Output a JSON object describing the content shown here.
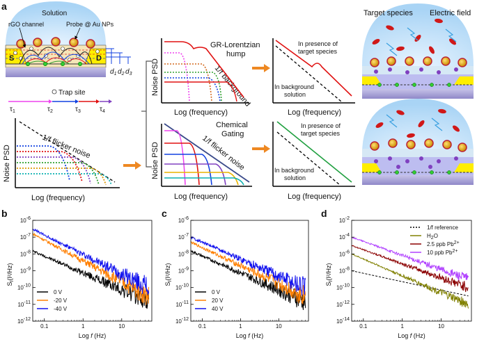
{
  "panel_labels": {
    "a": "a",
    "b": "b",
    "c": "c",
    "d": "d"
  },
  "schematic": {
    "solution": "Solution",
    "rgo_channel": "rGO channel",
    "probe": "Probe @ Au NPs",
    "source": "S",
    "drain": "D",
    "d1": "d",
    "d1_sub": "1",
    "d2": "d",
    "d2_sub": "2",
    "d3": "d",
    "d3_sub": "3",
    "trap_site": "Trap site",
    "tau1": "τ",
    "tau1_sub": "1",
    "tau2": "τ",
    "tau2_sub": "2",
    "tau3": "τ",
    "tau3_sub": "3",
    "tau4": "τ",
    "tau4_sub": "4"
  },
  "flicker_plot": {
    "ylabel": "Noise PSD",
    "xlabel": "Log (frequency)",
    "annotation": "1/f flicker noise"
  },
  "gr_plot": {
    "title1": "GR-Lorentzian",
    "title2": "hump",
    "ylabel": "Noise PSD",
    "xlabel": "Log (frequency)",
    "background": "1/f background"
  },
  "gating_plot": {
    "title1": "Chemical",
    "title2": "Gating",
    "ylabel": "Noise PSD",
    "xlabel": "Log (frequency)",
    "annotation": "1/f flicker noise"
  },
  "gr_result": {
    "presence1": "In presence of",
    "presence2": "target species",
    "background1": "In background",
    "background2": "solution",
    "xlabel": "Log (frequency)"
  },
  "gating_result": {
    "presence1": "In presence of",
    "presence2": "target species",
    "background1": "In background",
    "background2": "solution",
    "xlabel": "Log (frequency)"
  },
  "device_right": {
    "target_species": "Target species",
    "electric_field": "Electric field"
  },
  "chart_data": [
    {
      "type": "line",
      "panel": "b",
      "ylabel": "S_I (I²/Hz)",
      "ylabel_main": "S",
      "ylabel_sub": "I",
      "ylabel_unit": "(I²/Hz)",
      "xlabel": "Log f (Hz)",
      "xlabel_pre": "Log ",
      "xlabel_f": "f",
      "xlabel_post": " (Hz)",
      "xscale": "log",
      "yscale": "log",
      "xlim": [
        0.05,
        60
      ],
      "ylim": [
        1e-12,
        1e-06
      ],
      "xticks": [
        "0.1",
        "1",
        "10"
      ],
      "yticks": [
        "10-12",
        "10-11",
        "10-10",
        "10-9",
        "10-8",
        "10-7",
        "10-6"
      ],
      "ytick_exp": [
        "-12",
        "-11",
        "-10",
        "-9",
        "-8",
        "-7",
        "-6"
      ],
      "legend_position": "bottom-left",
      "series": [
        {
          "name": "0 V",
          "color": "#000000",
          "x": [
            0.05,
            50
          ],
          "y": [
            1.5e-08,
            1.5e-11
          ]
        },
        {
          "name": "-20 V",
          "color": "#ff7f00",
          "x": [
            0.05,
            50
          ],
          "y": [
            1.6e-07,
            3e-11
          ]
        },
        {
          "name": "-40 V",
          "color": "#1010ee",
          "x": [
            0.05,
            50
          ],
          "y": [
            3e-07,
            1e-10
          ]
        }
      ]
    },
    {
      "type": "line",
      "panel": "c",
      "ylabel": "S_I (I²/Hz)",
      "ylabel_main": "S",
      "ylabel_sub": "I",
      "ylabel_unit": "(I²/Hz)",
      "xlabel": "Log f (Hz)",
      "xlabel_pre": "Log ",
      "xlabel_f": "f",
      "xlabel_post": " (Hz)",
      "xscale": "log",
      "yscale": "log",
      "xlim": [
        0.05,
        60
      ],
      "ylim": [
        1e-12,
        1e-06
      ],
      "xticks": [
        "0.1",
        "1",
        "10"
      ],
      "yticks": [
        "10-12",
        "10-11",
        "10-10",
        "10-9",
        "10-8",
        "10-7",
        "10-6"
      ],
      "ytick_exp": [
        "-12",
        "-11",
        "-10",
        "-9",
        "-8",
        "-7",
        "-6"
      ],
      "legend_position": "bottom-left",
      "series": [
        {
          "name": "0 V",
          "color": "#000000",
          "x": [
            0.05,
            50
          ],
          "y": [
            1.5e-08,
            1.5e-11
          ]
        },
        {
          "name": "20 V",
          "color": "#ff7f00",
          "x": [
            0.05,
            50
          ],
          "y": [
            5e-08,
            3e-11
          ]
        },
        {
          "name": "40 V",
          "color": "#1010ee",
          "x": [
            0.05,
            50
          ],
          "y": [
            1e-07,
            1e-10
          ]
        }
      ]
    },
    {
      "type": "line",
      "panel": "d",
      "ylabel": "S_I (I²/Hz)",
      "ylabel_main": "S",
      "ylabel_sub": "I",
      "ylabel_unit": "(I²/Hz)",
      "xlabel": "Log f (Hz)",
      "xlabel_pre": "Log ",
      "xlabel_f": "f",
      "xlabel_post": " (Hz)",
      "xscale": "log",
      "yscale": "log",
      "xlim": [
        0.05,
        60
      ],
      "ylim": [
        1e-14,
        0.01
      ],
      "xticks": [
        "0.1",
        "1",
        "10"
      ],
      "yticks": [
        "10-14",
        "10-12",
        "10-10",
        "10-8",
        "10-6",
        "10-4",
        "10-2"
      ],
      "ytick_exp": [
        "-14",
        "-12",
        "-10",
        "-8",
        "-6",
        "-4",
        "-2"
      ],
      "legend_position": "top-right",
      "series": [
        {
          "name": "1/f reference",
          "color": "#000000",
          "dashed": true,
          "x": [
            0.05,
            50
          ],
          "y": [
            1e-08,
            1e-11
          ]
        },
        {
          "name": "H₂O",
          "label_main": "H",
          "label_sub": "2",
          "label_post": "O",
          "color": "#808000",
          "x": [
            0.05,
            50
          ],
          "y": [
            1e-06,
            1e-12
          ]
        },
        {
          "name": "2.5 ppb Pb²⁺",
          "label_main": "2.5 ppb Pb",
          "label_sup": "2+",
          "color": "#8b0000",
          "x": [
            0.05,
            50
          ],
          "y": [
            1e-05,
            1e-10
          ]
        },
        {
          "name": "10 ppb Pb²⁺",
          "label_main": "10 ppb Pb",
          "label_sup": "2+",
          "color": "#b040ff",
          "x": [
            0.05,
            50
          ],
          "y": [
            0.0001,
            1e-09
          ]
        }
      ]
    }
  ]
}
